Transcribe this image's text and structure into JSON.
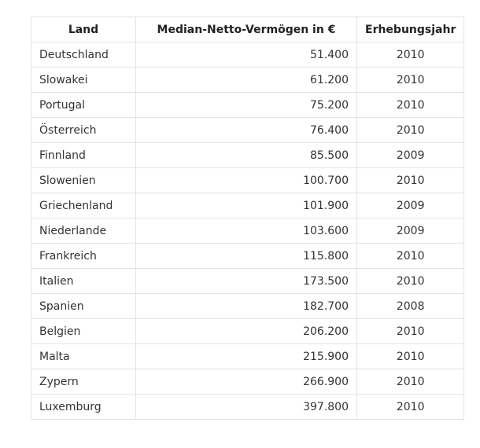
{
  "table": {
    "headers": [
      "Land",
      "Median-Netto-Vermögen in €",
      "Erhebungsjahr"
    ],
    "rows": [
      [
        "Deutschland",
        "51.400",
        "2010"
      ],
      [
        "Slowakei",
        "61.200",
        "2010"
      ],
      [
        "Portugal",
        "75.200",
        "2010"
      ],
      [
        "Österreich",
        "76.400",
        "2010"
      ],
      [
        "Finnland",
        "85.500",
        "2009"
      ],
      [
        "Slowenien",
        "100.700",
        "2010"
      ],
      [
        "Griechenland",
        "101.900",
        "2009"
      ],
      [
        "Niederlande",
        "103.600",
        "2009"
      ],
      [
        "Frankreich",
        "115.800",
        "2010"
      ],
      [
        "Italien",
        "173.500",
        "2010"
      ],
      [
        "Spanien",
        "182.700",
        "2008"
      ],
      [
        "Belgien",
        "206.200",
        "2010"
      ],
      [
        "Malta",
        "215.900",
        "2010"
      ],
      [
        "Zypern",
        "266.900",
        "2010"
      ],
      [
        "Luxemburg",
        "397.800",
        "2010"
      ]
    ]
  }
}
